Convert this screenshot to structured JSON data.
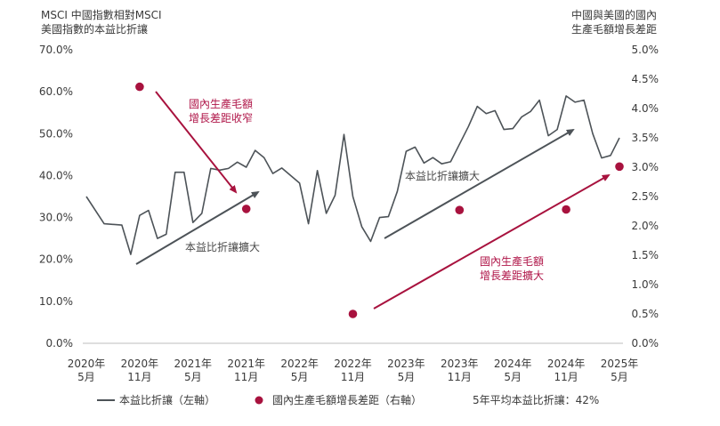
{
  "chart_data": {
    "type": "line",
    "left_axis_title": [
      "MSCI 中國指數相對MSCI",
      "美國指數的本益比折讓"
    ],
    "right_axis_title": [
      "中國與美國的國內",
      "生產毛額增長差距"
    ],
    "y_left": {
      "ticks": [
        "70.0%",
        "60.0%",
        "50.0%",
        "40.0%",
        "30.0%",
        "20.0%",
        "10.0%",
        "0.0%"
      ],
      "range": [
        0,
        70
      ]
    },
    "y_right": {
      "ticks": [
        "5.0%",
        "4.5%",
        "4.0%",
        "3.5%",
        "3.0%",
        "2.5%",
        "2.0%",
        "1.5%",
        "1.0%",
        "0.5%",
        "0.0%"
      ],
      "range": [
        0,
        5
      ]
    },
    "x_range": [
      0,
      60
    ],
    "x_ticks": [
      {
        "pos": 0,
        "line1": "2020年",
        "line2": "5月"
      },
      {
        "pos": 6,
        "line1": "2020年",
        "line2": "11月"
      },
      {
        "pos": 12,
        "line1": "2021年",
        "line2": "5月"
      },
      {
        "pos": 18,
        "line1": "2021年",
        "line2": "11月"
      },
      {
        "pos": 24,
        "line1": "2022年",
        "line2": "5月"
      },
      {
        "pos": 30,
        "line1": "2022年",
        "line2": "11月"
      },
      {
        "pos": 36,
        "line1": "2023年",
        "line2": "5月"
      },
      {
        "pos": 42,
        "line1": "2023年",
        "line2": "11月"
      },
      {
        "pos": 48,
        "line1": "2024年",
        "line2": "5月"
      },
      {
        "pos": 54,
        "line1": "2024年",
        "line2": "11月"
      },
      {
        "pos": 60,
        "line1": "2025年",
        "line2": "5月"
      }
    ],
    "series": [
      {
        "name": "本益比折讓（左軸）",
        "color": "#4d5358",
        "axis": "left",
        "points": [
          [
            0,
            35
          ],
          [
            2,
            28.5
          ],
          [
            4,
            28.2
          ],
          [
            5,
            21.2
          ],
          [
            6,
            30.5
          ],
          [
            7,
            31.7
          ],
          [
            8,
            25
          ],
          [
            9,
            26
          ],
          [
            10,
            40.8
          ],
          [
            11,
            40.8
          ],
          [
            12,
            28.8
          ],
          [
            13,
            31
          ],
          [
            14,
            41.7
          ],
          [
            15,
            41.3
          ],
          [
            16,
            41.7
          ],
          [
            17,
            43.2
          ],
          [
            18,
            42
          ],
          [
            19,
            46
          ],
          [
            20,
            44.3
          ],
          [
            21,
            40.5
          ],
          [
            22,
            41.8
          ],
          [
            24,
            38.2
          ],
          [
            25,
            28.5
          ],
          [
            26,
            41.2
          ],
          [
            27,
            31
          ],
          [
            28,
            35.3
          ],
          [
            29,
            49.8
          ],
          [
            30,
            35
          ],
          [
            31,
            27.8
          ],
          [
            32,
            24.3
          ],
          [
            33,
            30
          ],
          [
            34,
            30.2
          ],
          [
            35,
            36.2
          ],
          [
            36,
            45.8
          ],
          [
            37,
            46.8
          ],
          [
            38,
            43
          ],
          [
            39,
            44.3
          ],
          [
            40,
            42.8
          ],
          [
            41,
            43.3
          ],
          [
            43,
            51.7
          ],
          [
            44,
            56.5
          ],
          [
            45,
            54.8
          ],
          [
            46,
            55.5
          ],
          [
            47,
            51
          ],
          [
            48,
            51.2
          ],
          [
            49,
            54
          ],
          [
            50,
            55.3
          ],
          [
            51,
            58
          ],
          [
            52,
            49.5
          ],
          [
            53,
            51
          ],
          [
            54,
            59
          ],
          [
            55,
            57.5
          ],
          [
            56,
            58
          ],
          [
            57,
            50
          ],
          [
            58,
            44.2
          ],
          [
            59,
            44.8
          ],
          [
            60,
            49
          ]
        ]
      },
      {
        "name": "國內生產毛額增長差距（右軸）",
        "color": "#a8123e",
        "axis": "right",
        "points": [
          [
            6,
            4.37
          ],
          [
            18,
            2.29
          ],
          [
            30,
            0.5
          ],
          [
            42,
            2.27
          ],
          [
            54,
            2.28
          ],
          [
            60,
            3.01
          ]
        ]
      }
    ],
    "annotations": [
      {
        "text": "本益比折讓擴大",
        "color": "gray"
      },
      {
        "text": "國內生產毛額增長差距收窄",
        "color": "red"
      },
      {
        "text": "本益比折讓擴大",
        "color": "gray"
      },
      {
        "text": "國內生產毛額增長差距擴大",
        "color": "red"
      }
    ],
    "legend": [
      {
        "label": "本益比折讓（左軸）",
        "marker": "line"
      },
      {
        "label": "國內生產毛額增長差距（右軸）",
        "marker": "dot"
      },
      {
        "label": "5年平均本益比折讓：42%",
        "marker": "none"
      }
    ]
  }
}
